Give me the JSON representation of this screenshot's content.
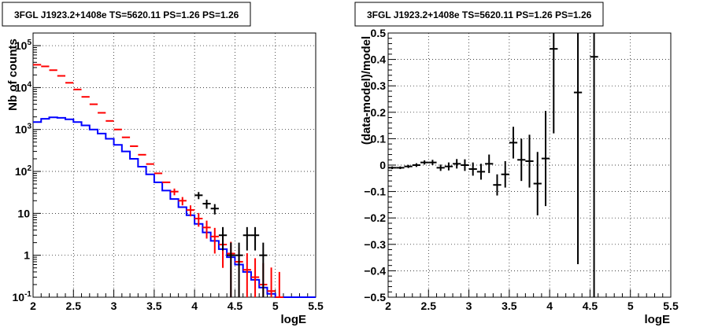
{
  "chart_data": [
    {
      "type": "line",
      "title": "3FGL J1923.2+1408e TS=5620.11 PS=1.26 PS=1.26",
      "xlabel": "logE",
      "ylabel": "Nb of counts",
      "xlim": [
        2,
        5.5
      ],
      "ylim": [
        0.1,
        200000
      ],
      "y_scale": "log",
      "grid": true,
      "x_ticks": [
        "2",
        "2.5",
        "3",
        "3.5",
        "4",
        "4.5",
        "5",
        "5.5"
      ],
      "y_ticks": [
        {
          "label": "10",
          "exp": "-1",
          "value": 0.1
        },
        {
          "label": "1",
          "exp": "",
          "value": 1
        },
        {
          "label": "10",
          "exp": "",
          "value": 10
        },
        {
          "label": "10",
          "exp": "2",
          "value": 100
        },
        {
          "label": "10",
          "exp": "3",
          "value": 1000
        },
        {
          "label": "10",
          "exp": "4",
          "value": 10000
        },
        {
          "label": "10",
          "exp": "5",
          "value": 100000
        }
      ],
      "series": [
        {
          "kind": "step",
          "color": "#0000ff",
          "x_edges": [
            2.0,
            2.1,
            2.2,
            2.3,
            2.4,
            2.5,
            2.6,
            2.7,
            2.8,
            2.9,
            3.0,
            3.1,
            3.2,
            3.3,
            3.4,
            3.5,
            3.6,
            3.7,
            3.8,
            3.9,
            4.0,
            4.1,
            4.2,
            4.3,
            4.4,
            4.5,
            4.6,
            4.7,
            4.8,
            4.9,
            5.0,
            5.1,
            5.2,
            5.3,
            5.4,
            5.5
          ],
          "values": [
            1500,
            1800,
            1950,
            1900,
            1750,
            1500,
            1250,
            1000,
            800,
            600,
            430,
            300,
            200,
            130,
            85,
            55,
            35,
            22,
            14,
            9,
            5.6,
            3.5,
            2.2,
            1.4,
            0.9,
            0.6,
            0.4,
            0.26,
            0.17,
            0.12,
            0.1,
            0.1,
            0.1,
            0.1,
            0.1
          ]
        },
        {
          "kind": "model_errors",
          "color": "#ff0000",
          "points": [
            {
              "x": 2.05,
              "y": 35000,
              "err": 0
            },
            {
              "x": 2.15,
              "y": 32000,
              "err": 0
            },
            {
              "x": 2.25,
              "y": 26000,
              "err": 0
            },
            {
              "x": 2.35,
              "y": 19000,
              "err": 0
            },
            {
              "x": 2.45,
              "y": 13000,
              "err": 0
            },
            {
              "x": 2.55,
              "y": 9000,
              "err": 0
            },
            {
              "x": 2.65,
              "y": 6000,
              "err": 0
            },
            {
              "x": 2.75,
              "y": 4000,
              "err": 0
            },
            {
              "x": 2.85,
              "y": 2500,
              "err": 0
            },
            {
              "x": 2.95,
              "y": 1600,
              "err": 0
            },
            {
              "x": 3.05,
              "y": 1000,
              "err": 0
            },
            {
              "x": 3.15,
              "y": 650,
              "err": 0
            },
            {
              "x": 3.25,
              "y": 400,
              "err": 0
            },
            {
              "x": 3.35,
              "y": 250,
              "err": 0
            },
            {
              "x": 3.45,
              "y": 150,
              "err": 0
            },
            {
              "x": 3.55,
              "y": 90,
              "err": 0
            },
            {
              "x": 3.65,
              "y": 55,
              "err": 0
            },
            {
              "x": 3.75,
              "y": 33,
              "err": 6
            },
            {
              "x": 3.85,
              "y": 20,
              "err": 4.5
            },
            {
              "x": 3.95,
              "y": 12,
              "err": 3.5
            },
            {
              "x": 4.05,
              "y": 7.5,
              "err": 2.7
            },
            {
              "x": 4.15,
              "y": 4.6,
              "err": 2.1
            },
            {
              "x": 4.25,
              "y": 2.8,
              "err": 1.7
            },
            {
              "x": 4.35,
              "y": 1.8,
              "err": 1.3
            },
            {
              "x": 4.45,
              "y": 1.1,
              "err": 1.0
            },
            {
              "x": 4.55,
              "y": 0.7,
              "err": 0.84
            },
            {
              "x": 4.65,
              "y": 0.45,
              "err": 0.67
            },
            {
              "x": 4.75,
              "y": 0.3,
              "err": 0.55
            },
            {
              "x": 4.85,
              "y": 0.2,
              "err": 0.45
            },
            {
              "x": 4.95,
              "y": 0.14,
              "err": 0.37
            },
            {
              "x": 5.05,
              "y": 0.1,
              "err": 0.3
            }
          ]
        },
        {
          "kind": "data_errors",
          "color": "#000000",
          "points": [
            {
              "x": 4.05,
              "y": 27,
              "err": 5.2
            },
            {
              "x": 4.15,
              "y": 17,
              "err": 4.1
            },
            {
              "x": 4.25,
              "y": 13,
              "err": 3.6
            },
            {
              "x": 4.35,
              "y": 3,
              "err": 1.7
            },
            {
              "x": 4.45,
              "y": 1,
              "err": 1
            },
            {
              "x": 4.55,
              "y": 1,
              "err": 1
            },
            {
              "x": 4.65,
              "y": 3,
              "err": 1.7
            },
            {
              "x": 4.75,
              "y": 3,
              "err": 1.7
            },
            {
              "x": 4.85,
              "y": 1,
              "err": 1
            }
          ]
        }
      ]
    },
    {
      "type": "scatter",
      "title": "3FGL J1923.2+1408e TS=5620.11 PS=1.26 PS=1.26",
      "xlabel": "logE",
      "ylabel": "(data-model)/model",
      "xlim": [
        2,
        5.5
      ],
      "ylim": [
        -0.5,
        0.5
      ],
      "grid": true,
      "x_ticks": [
        "2",
        "2.5",
        "3",
        "3.5",
        "4",
        "4.5",
        "5",
        "5.5"
      ],
      "y_ticks": [
        "−0.5",
        "−0.4",
        "−0.3",
        "−0.2",
        "−0.1",
        "0",
        "0.1",
        "0.2",
        "0.3",
        "0.4",
        "0.5"
      ],
      "series": [
        {
          "kind": "residuals",
          "color": "#000000",
          "points": [
            {
              "x": 2.05,
              "y": -0.01,
              "err": 0.005
            },
            {
              "x": 2.15,
              "y": -0.01,
              "err": 0.005
            },
            {
              "x": 2.25,
              "y": -0.005,
              "err": 0.006
            },
            {
              "x": 2.35,
              "y": 0.0,
              "err": 0.007
            },
            {
              "x": 2.45,
              "y": 0.01,
              "err": 0.008
            },
            {
              "x": 2.55,
              "y": 0.01,
              "err": 0.01
            },
            {
              "x": 2.65,
              "y": -0.01,
              "err": 0.012
            },
            {
              "x": 2.75,
              "y": -0.005,
              "err": 0.015
            },
            {
              "x": 2.85,
              "y": 0.005,
              "err": 0.018
            },
            {
              "x": 2.95,
              "y": 0.0,
              "err": 0.022
            },
            {
              "x": 3.05,
              "y": -0.015,
              "err": 0.025
            },
            {
              "x": 3.15,
              "y": -0.025,
              "err": 0.03
            },
            {
              "x": 3.25,
              "y": 0.005,
              "err": 0.035
            },
            {
              "x": 3.35,
              "y": -0.075,
              "err": 0.04
            },
            {
              "x": 3.45,
              "y": -0.035,
              "err": 0.05
            },
            {
              "x": 3.55,
              "y": 0.085,
              "err": 0.06
            },
            {
              "x": 3.65,
              "y": 0.02,
              "err": 0.08
            },
            {
              "x": 3.75,
              "y": 0.015,
              "err": 0.1
            },
            {
              "x": 3.85,
              "y": -0.07,
              "err": 0.12
            },
            {
              "x": 3.95,
              "y": 0.025,
              "err": 0.18
            },
            {
              "x": 4.05,
              "y": 0.44,
              "err": 0.32
            },
            {
              "x": 4.35,
              "y": 0.275,
              "err": 0.65
            },
            {
              "x": 4.55,
              "y": 0.41,
              "err": 1.0
            }
          ]
        }
      ]
    }
  ]
}
